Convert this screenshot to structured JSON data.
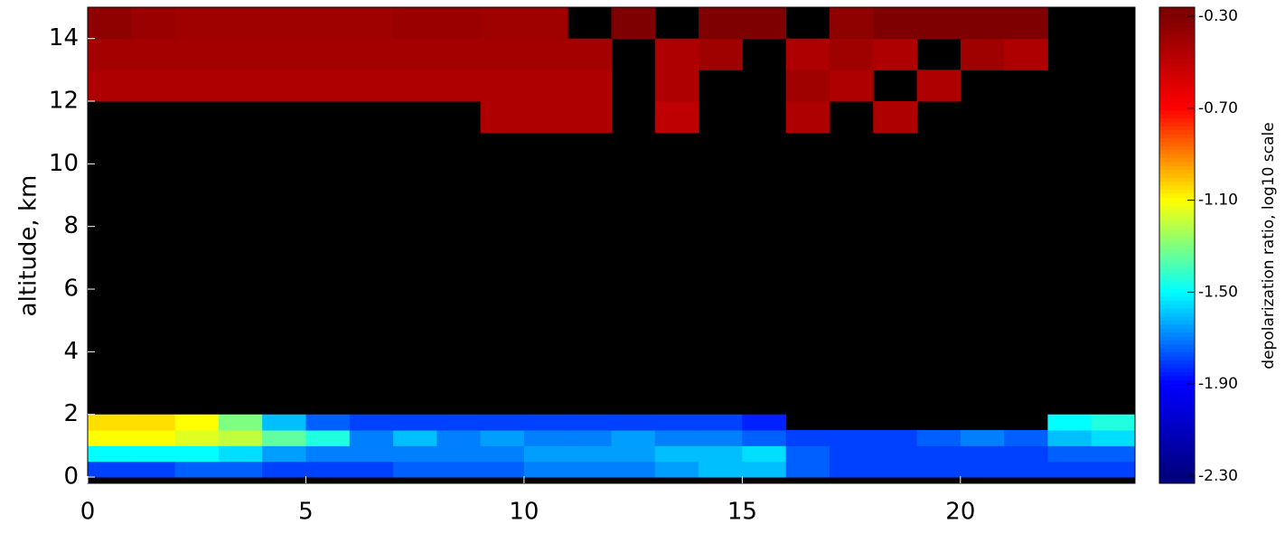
{
  "chart_data": {
    "type": "heatmap",
    "ylabel": "altitude, km",
    "xbins": [
      0,
      1,
      2,
      3,
      4,
      5,
      6,
      7,
      8,
      9,
      10,
      11,
      12,
      13,
      14,
      15,
      16,
      17,
      18,
      19,
      20,
      21,
      22,
      23,
      24
    ],
    "ybins": [
      0,
      0.5,
      1,
      1.5,
      2,
      4,
      6,
      8,
      10,
      11,
      12,
      13,
      14,
      15
    ],
    "z": [
      [
        -1.8,
        -1.8,
        -1.75,
        -1.75,
        -1.8,
        -1.8,
        -1.8,
        -1.75,
        -1.75,
        -1.75,
        -1.7,
        -1.7,
        -1.7,
        -1.65,
        -1.6,
        -1.6,
        -1.75,
        -1.8,
        -1.8,
        -1.8,
        -1.8,
        -1.8,
        -1.8,
        -1.8
      ],
      [
        -1.5,
        -1.5,
        -1.5,
        -1.55,
        -1.65,
        -1.7,
        -1.7,
        -1.7,
        -1.7,
        -1.7,
        -1.65,
        -1.65,
        -1.65,
        -1.6,
        -1.6,
        -1.55,
        -1.75,
        -1.8,
        -1.8,
        -1.8,
        -1.8,
        -1.8,
        -1.75,
        -1.75
      ],
      [
        -1.1,
        -1.1,
        -1.15,
        -1.2,
        -1.35,
        -1.45,
        -1.7,
        -1.6,
        -1.7,
        -1.65,
        -1.7,
        -1.7,
        -1.65,
        -1.7,
        -1.7,
        -1.75,
        -1.8,
        -1.8,
        -1.8,
        -1.75,
        -1.7,
        -1.75,
        -1.6,
        -1.55
      ],
      [
        -1.05,
        -1.05,
        -1.1,
        -1.3,
        -1.6,
        -1.75,
        -1.8,
        -1.8,
        -1.8,
        -1.8,
        -1.8,
        -1.8,
        -1.8,
        -1.8,
        -1.8,
        -1.85,
        null,
        null,
        null,
        null,
        null,
        null,
        -1.5,
        -1.45
      ],
      [
        null,
        null,
        null,
        null,
        null,
        null,
        null,
        null,
        null,
        null,
        null,
        null,
        null,
        null,
        null,
        null,
        null,
        null,
        null,
        null,
        null,
        null,
        null,
        null
      ],
      [
        null,
        null,
        null,
        null,
        null,
        null,
        null,
        null,
        null,
        null,
        null,
        null,
        null,
        null,
        null,
        null,
        null,
        null,
        null,
        null,
        null,
        null,
        null,
        null
      ],
      [
        null,
        null,
        null,
        null,
        null,
        null,
        null,
        null,
        null,
        null,
        null,
        null,
        null,
        null,
        null,
        null,
        null,
        null,
        null,
        null,
        null,
        null,
        null,
        null
      ],
      [
        null,
        null,
        null,
        null,
        null,
        null,
        null,
        null,
        null,
        null,
        null,
        null,
        null,
        null,
        null,
        null,
        null,
        null,
        null,
        null,
        null,
        null,
        null,
        null
      ],
      [
        null,
        null,
        null,
        null,
        null,
        null,
        null,
        null,
        null,
        null,
        null,
        null,
        null,
        null,
        null,
        null,
        null,
        null,
        null,
        null,
        null,
        null,
        null,
        null
      ],
      [
        null,
        null,
        null,
        null,
        null,
        null,
        null,
        null,
        null,
        -0.45,
        -0.45,
        -0.45,
        null,
        -0.5,
        null,
        null,
        -0.45,
        null,
        -0.45,
        null,
        null,
        null,
        null,
        null
      ],
      [
        -0.45,
        -0.45,
        -0.45,
        -0.45,
        -0.45,
        -0.45,
        -0.45,
        -0.45,
        -0.45,
        -0.45,
        -0.45,
        -0.45,
        null,
        -0.45,
        null,
        null,
        -0.4,
        -0.45,
        null,
        -0.45,
        null,
        null,
        null,
        null
      ],
      [
        -0.42,
        -0.42,
        -0.42,
        -0.42,
        -0.42,
        -0.42,
        -0.42,
        -0.42,
        -0.42,
        -0.42,
        -0.42,
        -0.42,
        null,
        -0.45,
        -0.4,
        null,
        -0.45,
        -0.4,
        -0.45,
        null,
        -0.4,
        -0.45,
        null,
        null
      ],
      [
        -0.35,
        -0.38,
        -0.4,
        -0.4,
        -0.4,
        -0.4,
        -0.4,
        -0.38,
        -0.38,
        -0.4,
        -0.4,
        null,
        -0.3,
        null,
        -0.3,
        -0.3,
        null,
        -0.35,
        -0.3,
        -0.3,
        -0.3,
        -0.3,
        null,
        null
      ]
    ],
    "null_color": "#000000",
    "xlim": [
      0,
      24
    ],
    "xticks": [
      0,
      5,
      10,
      15,
      20
    ],
    "ylim": [
      -0.2,
      15
    ],
    "yticks": [
      0,
      2,
      4,
      6,
      8,
      10,
      12,
      14
    ],
    "colorbar": {
      "label": "depolarization ratio, log10 scale",
      "clim": [
        -2.3,
        -0.3
      ],
      "ticks": [
        {
          "value": -0.3,
          "label": "-0.30"
        },
        {
          "value": -0.7,
          "label": "-0.70"
        },
        {
          "value": -1.1,
          "label": "-1.10"
        },
        {
          "value": -1.5,
          "label": "-1.50"
        },
        {
          "value": -1.9,
          "label": "-1.90"
        },
        {
          "value": -2.3,
          "label": "-2.30"
        }
      ],
      "colormap": [
        "#00007f",
        "#0000ff",
        "#00ffff",
        "#ffff00",
        "#ff0000",
        "#7f0000"
      ]
    }
  }
}
